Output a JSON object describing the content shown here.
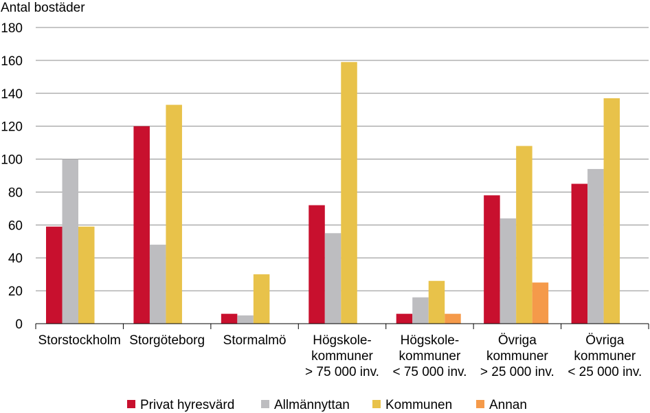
{
  "chart_data": {
    "type": "bar",
    "ylabel": "Antal bostäder",
    "ylim": [
      0,
      180
    ],
    "yticks": [
      0,
      20,
      40,
      60,
      80,
      100,
      120,
      140,
      160,
      180
    ],
    "grid": true,
    "legend_position": "bottom",
    "categories": [
      [
        "Storstockholm"
      ],
      [
        "Storgöteborg"
      ],
      [
        "Stormalmö"
      ],
      [
        "Högskole-",
        "kommuner",
        "> 75 000 inv."
      ],
      [
        "Högskole-",
        "kommuner",
        "< 75 000 inv."
      ],
      [
        "Övriga",
        "kommuner",
        "> 25 000 inv."
      ],
      [
        "Övriga",
        "kommuner",
        "< 25 000 inv."
      ]
    ],
    "series": [
      {
        "name": "Privat hyresvärd",
        "color": "#c8102e",
        "values": [
          59,
          120,
          6,
          72,
          6,
          78,
          85
        ]
      },
      {
        "name": "Allmännyttan",
        "color": "#bdbdc0",
        "values": [
          100,
          48,
          5,
          55,
          16,
          64,
          94
        ]
      },
      {
        "name": "Kommunen",
        "color": "#e8c24a",
        "values": [
          59,
          133,
          30,
          159,
          26,
          108,
          137
        ]
      },
      {
        "name": "Annan",
        "color": "#f59a4a",
        "values": [
          0,
          0,
          0,
          0,
          6,
          25,
          0
        ]
      }
    ]
  }
}
